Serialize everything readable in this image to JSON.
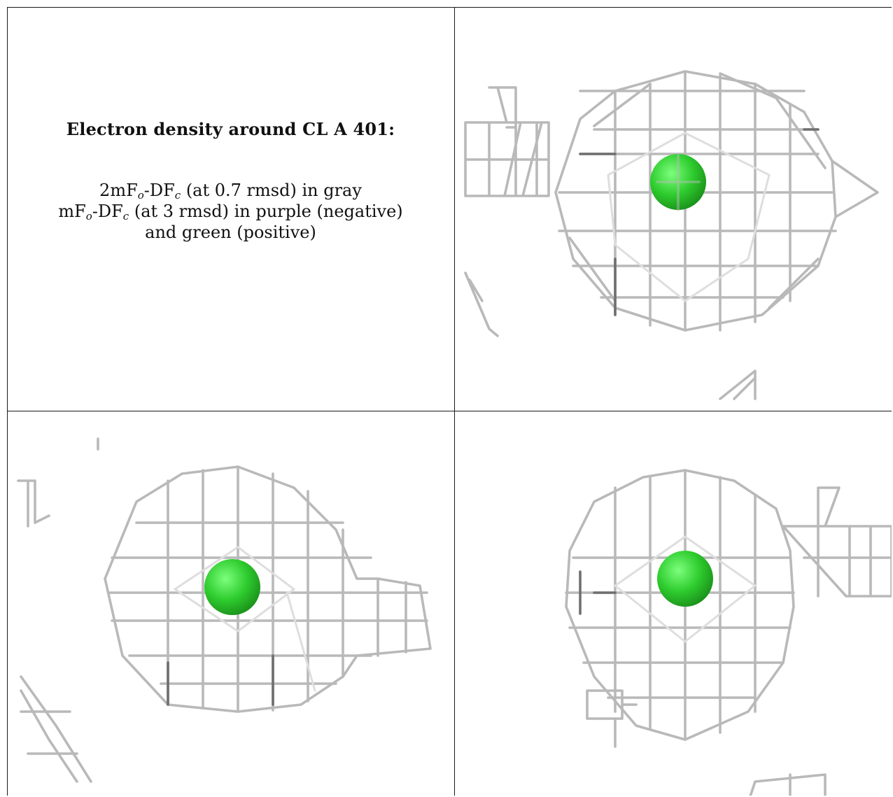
{
  "caption": {
    "title": "Electron density around CL A 401:",
    "line1": {
      "pre": "2mF",
      "sub1": "o",
      "mid": "-DF",
      "sub2": "c",
      "post": " (at 0.7 rmsd) in gray"
    },
    "line2": {
      "pre": "mF",
      "sub1": "o",
      "mid": "-DF",
      "sub2": "c",
      "post": " (at 3 rmsd) in purple (negative)"
    },
    "line3": "and green (positive)"
  },
  "colors": {
    "mesh_gray": "#b9b9b9",
    "mesh_dark": "#6f6f6f",
    "ion_green": "#2ecc2e",
    "border": "#1a1a1a"
  }
}
